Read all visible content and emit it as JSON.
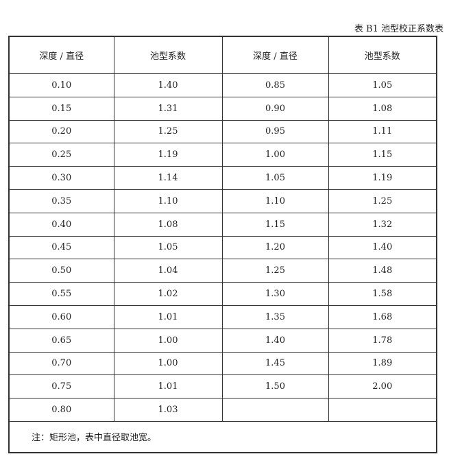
{
  "caption": "表 B1 池型校正系数表",
  "headers": [
    "深度 / 直径",
    "池型系数",
    "深度 / 直径",
    "池型系数"
  ],
  "rows": [
    [
      "0.10",
      "1.40",
      "0.85",
      "1.05"
    ],
    [
      "0.15",
      "1.31",
      "0.90",
      "1.08"
    ],
    [
      "0.20",
      "1.25",
      "0.95",
      "1.11"
    ],
    [
      "0.25",
      "1.19",
      "1.00",
      "1.15"
    ],
    [
      "0.30",
      "1.14",
      "1.05",
      "1.19"
    ],
    [
      "0.35",
      "1.10",
      "1.10",
      "1.25"
    ],
    [
      "0.40",
      "1.08",
      "1.15",
      "1.32"
    ],
    [
      "0.45",
      "1.05",
      "1.20",
      "1.40"
    ],
    [
      "0.50",
      "1.04",
      "1.25",
      "1.48"
    ],
    [
      "0.55",
      "1.02",
      "1.30",
      "1.58"
    ],
    [
      "0.60",
      "1.01",
      "1.35",
      "1.68"
    ],
    [
      "0.65",
      "1.00",
      "1.40",
      "1.78"
    ],
    [
      "0.70",
      "1.00",
      "1.45",
      "1.89"
    ],
    [
      "0.75",
      "1.01",
      "1.50",
      "2.00"
    ],
    [
      "0.80",
      "1.03",
      "",
      ""
    ]
  ],
  "note": "注：矩形池，表中直径取池宽。"
}
